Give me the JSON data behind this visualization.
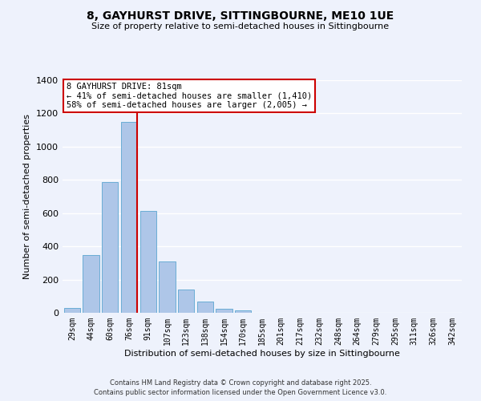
{
  "title": "8, GAYHURST DRIVE, SITTINGBOURNE, ME10 1UE",
  "subtitle": "Size of property relative to semi-detached houses in Sittingbourne",
  "xlabel": "Distribution of semi-detached houses by size in Sittingbourne",
  "ylabel": "Number of semi-detached properties",
  "bar_labels": [
    "29sqm",
    "44sqm",
    "60sqm",
    "76sqm",
    "91sqm",
    "107sqm",
    "123sqm",
    "138sqm",
    "154sqm",
    "170sqm",
    "185sqm",
    "201sqm",
    "217sqm",
    "232sqm",
    "248sqm",
    "264sqm",
    "279sqm",
    "295sqm",
    "311sqm",
    "326sqm",
    "342sqm"
  ],
  "bar_values": [
    30,
    350,
    785,
    1150,
    615,
    310,
    140,
    70,
    25,
    15,
    0,
    0,
    0,
    0,
    0,
    0,
    0,
    0,
    0,
    0,
    0
  ],
  "bar_color": "#aec6e8",
  "bar_edge_color": "#6aadd5",
  "annotation_title": "8 GAYHURST DRIVE: 81sqm",
  "annotation_line1": "← 41% of semi-detached houses are smaller (1,410)",
  "annotation_line2": "58% of semi-detached houses are larger (2,005) →",
  "annotation_box_color": "#ffffff",
  "annotation_box_edge": "#cc0000",
  "vline_color": "#cc0000",
  "ylim": [
    0,
    1400
  ],
  "background_color": "#eef2fc",
  "grid_color": "#ffffff",
  "footer1": "Contains HM Land Registry data © Crown copyright and database right 2025.",
  "footer2": "Contains public sector information licensed under the Open Government Licence v3.0."
}
